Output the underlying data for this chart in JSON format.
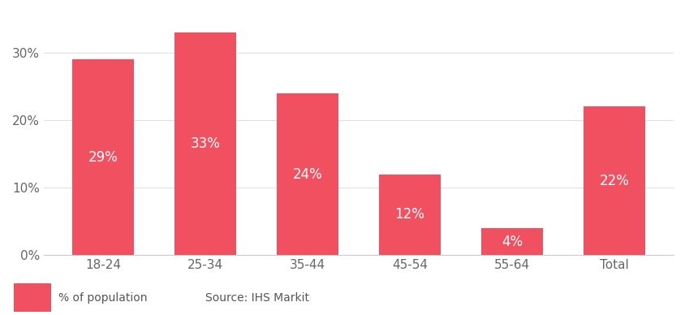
{
  "categories": [
    "18-24",
    "25-34",
    "35-44",
    "45-54",
    "55-64",
    "Total"
  ],
  "values": [
    29,
    33,
    24,
    12,
    4,
    22
  ],
  "labels": [
    "29%",
    "33%",
    "24%",
    "12%",
    "4%",
    "22%"
  ],
  "bar_color": "#f05060",
  "background_color": "#ffffff",
  "ylim": [
    0,
    36
  ],
  "yticks": [
    0,
    10,
    20,
    30
  ],
  "ytick_labels": [
    "0%",
    "10%",
    "20%",
    "30%"
  ],
  "grid_color": "#e0e0e0",
  "text_color": "#ffffff",
  "label_fontsize": 12,
  "tick_fontsize": 11,
  "legend_label": "% of population",
  "source_text": "Source: IHS Markit",
  "bar_width": 0.6
}
